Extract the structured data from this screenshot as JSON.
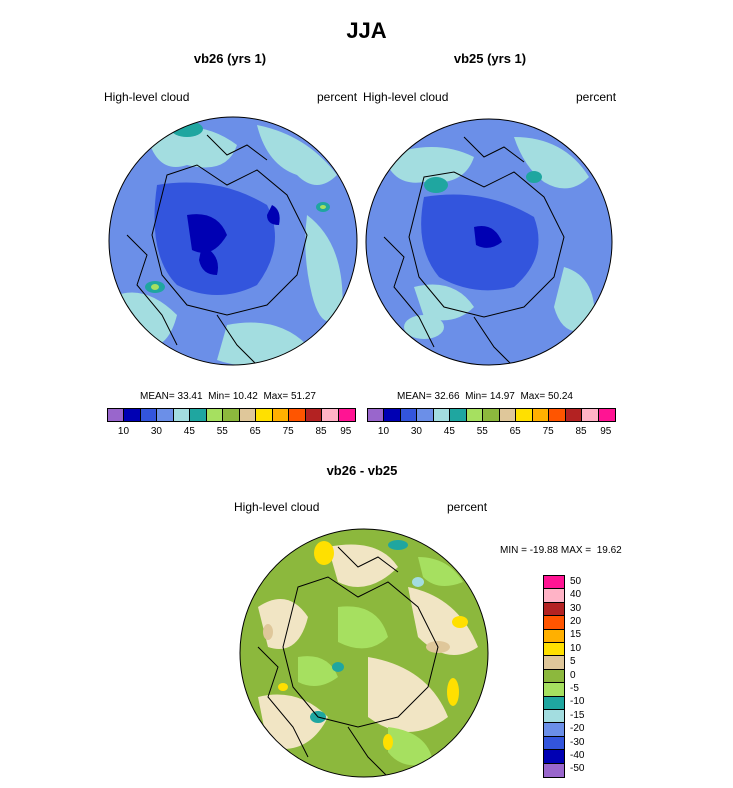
{
  "title": "JJA",
  "panels": [
    {
      "subtitle": "vb26 (yrs 1)",
      "left_label": "High-level cloud",
      "right_label": "percent",
      "stats": {
        "mean_label": "MEAN=",
        "mean": "33.41",
        "min_label": "Min=",
        "min": "10.42",
        "max_label": "Max=",
        "max": "51.27"
      }
    },
    {
      "subtitle": "vb25 (yrs 1)",
      "left_label": "High-level cloud",
      "right_label": "percent",
      "stats": {
        "mean_label": "MEAN=",
        "mean": "32.66",
        "min_label": "Min=",
        "min": "14.97",
        "max_label": "Max=",
        "max": "50.24"
      }
    }
  ],
  "diff_panel": {
    "subtitle": "vb26 - vb25",
    "left_label": "High-level cloud",
    "right_label": "percent",
    "minmax": "MIN = -19.88 MAX =  19.62"
  },
  "colorbar_abs": {
    "colors": [
      "#9966cc",
      "#0000b3",
      "#3355dd",
      "#6b8fe8",
      "#a3dde0",
      "#1fa6a0",
      "#a6e060",
      "#8cb83d",
      "#dfc79a",
      "#ffe000",
      "#ffb000",
      "#ff5500",
      "#b32222",
      "#ffb3c6",
      "#ff1493"
    ],
    "tick_labels": [
      "10",
      "30",
      "45",
      "55",
      "65",
      "75",
      "85",
      "95"
    ]
  },
  "colorbar_diff": {
    "colors": [
      "#ff1493",
      "#ffb3c6",
      "#b32222",
      "#ff5500",
      "#ffb000",
      "#ffe000",
      "#dfc79a",
      "#8cb83d",
      "#a6e060",
      "#1fa6a0",
      "#a3dde0",
      "#6b8fe8",
      "#3355dd",
      "#0000b3",
      "#9966cc"
    ],
    "tick_labels": [
      "50",
      "40",
      "30",
      "20",
      "15",
      "10",
      "5",
      "0",
      "-5",
      "-10",
      "-15",
      "-20",
      "-30",
      "-40",
      "-50"
    ]
  },
  "chart_data": [
    {
      "type": "heatmap",
      "title": "vb26 (yrs 1)",
      "variable": "High-level cloud",
      "units": "percent",
      "mean": 33.41,
      "min": 10.42,
      "max": 51.27,
      "contour_levels": [
        10,
        15,
        20,
        25,
        30,
        35,
        40,
        45,
        50,
        55,
        60,
        65,
        70,
        75,
        80,
        85,
        90,
        95
      ]
    },
    {
      "type": "heatmap",
      "title": "vb25 (yrs 1)",
      "variable": "High-level cloud",
      "units": "percent",
      "mean": 32.66,
      "min": 14.97,
      "max": 50.24,
      "contour_levels": [
        10,
        15,
        20,
        25,
        30,
        35,
        40,
        45,
        50,
        55,
        60,
        65,
        70,
        75,
        80,
        85,
        90,
        95
      ]
    },
    {
      "type": "heatmap",
      "title": "vb26 - vb25",
      "variable": "High-level cloud",
      "units": "percent",
      "min": -19.88,
      "max": 19.62,
      "contour_levels": [
        -50,
        -40,
        -30,
        -20,
        -15,
        -10,
        -5,
        0,
        5,
        10,
        15,
        20,
        30,
        40,
        50
      ]
    }
  ]
}
